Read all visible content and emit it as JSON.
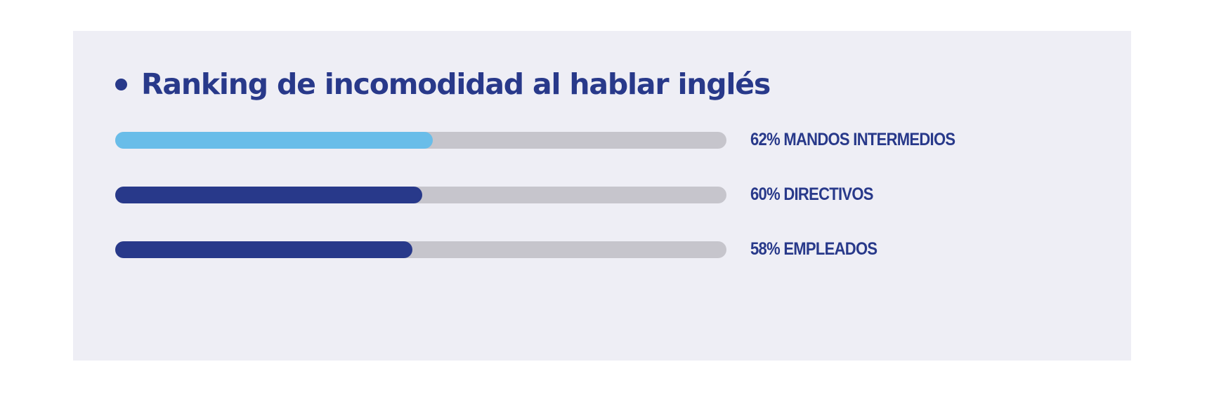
{
  "chart_data": {
    "type": "bar",
    "orientation": "horizontal",
    "title": "Ranking de incomodidad al hablar inglés",
    "categories": [
      "MANDOS INTERMEDIOS",
      "DIRECTIVOS",
      "EMPLEADOS"
    ],
    "values": [
      62,
      60,
      58
    ],
    "value_labels": [
      "62%",
      "60%",
      "58%"
    ],
    "colors": [
      "#69bde9",
      "#28398a",
      "#28398a"
    ],
    "track_color": "#c6c5cc",
    "ylim": [
      0,
      100
    ],
    "grid": false,
    "legend": "none"
  },
  "colors": {
    "panel_background": "#eeeef5",
    "accent": "#28398a"
  }
}
